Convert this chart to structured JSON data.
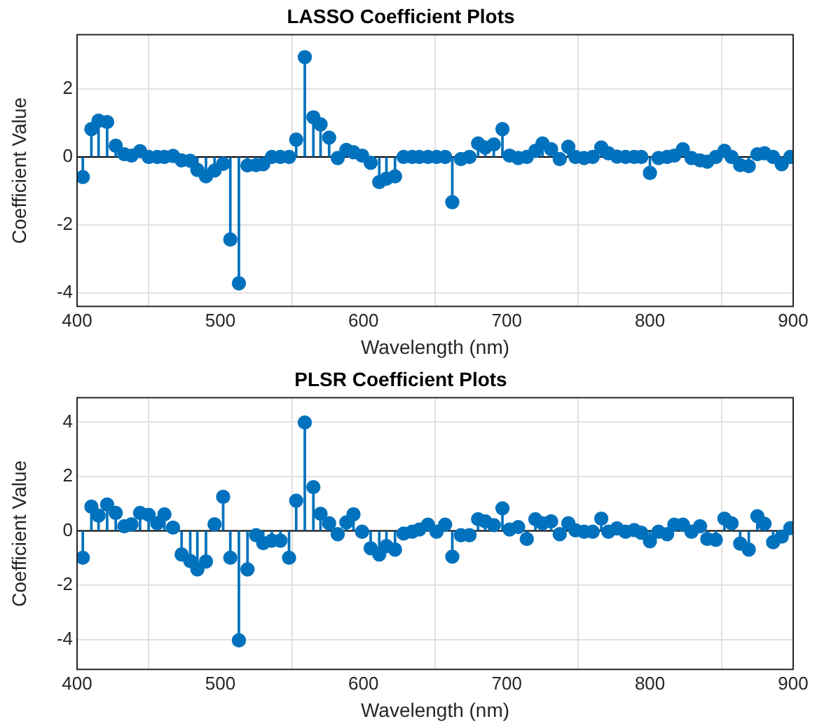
{
  "chart_data": [
    {
      "type": "lollipop",
      "title": "LASSO Coefficient Plots",
      "xlabel": "Wavelength (nm)",
      "ylabel": "Coefficient Value",
      "color": "#0072bd",
      "marker": "circle",
      "grid": true,
      "xlim": [
        400,
        900
      ],
      "xticks": [
        400,
        500,
        600,
        700,
        800,
        900
      ],
      "ylim": [
        -4.4,
        3.6
      ],
      "yticks": [
        -4,
        -2,
        0,
        2
      ],
      "x": [
        404,
        410,
        415,
        421,
        427,
        433,
        438,
        444,
        450,
        456,
        461,
        467,
        473,
        479,
        484,
        490,
        496,
        502,
        507,
        513,
        519,
        525,
        530,
        536,
        542,
        548,
        553,
        559,
        565,
        570,
        576,
        582,
        588,
        593,
        599,
        605,
        611,
        616,
        622,
        628,
        634,
        639,
        645,
        651,
        657,
        662,
        668,
        674,
        680,
        685,
        691,
        697,
        702,
        708,
        714,
        720,
        725,
        731,
        737,
        743,
        748,
        754,
        760,
        766,
        771,
        777,
        783,
        789,
        794,
        800,
        806,
        812,
        817,
        823,
        829,
        835,
        840,
        846,
        852,
        857,
        863,
        869,
        875,
        880,
        886,
        892,
        898
      ],
      "values": [
        -0.59,
        0.82,
        1.07,
        1.03,
        0.33,
        0.08,
        0.04,
        0.17,
        0,
        0,
        0,
        0.03,
        -0.1,
        -0.11,
        -0.38,
        -0.57,
        -0.4,
        -0.2,
        -2.43,
        -3.72,
        -0.25,
        -0.24,
        -0.21,
        0,
        0,
        0,
        0.51,
        2.94,
        1.17,
        0.96,
        0.57,
        -0.03,
        0.21,
        0.14,
        0.04,
        -0.17,
        -0.74,
        -0.64,
        -0.57,
        0,
        0,
        0,
        0,
        0,
        0,
        -1.33,
        -0.06,
        0,
        0.4,
        0.28,
        0.37,
        0.82,
        0.04,
        -0.03,
        0,
        0.18,
        0.4,
        0.23,
        -0.06,
        0.3,
        0,
        -0.03,
        0,
        0.28,
        0.11,
        0.01,
        0,
        0,
        0,
        -0.47,
        -0.03,
        0,
        0.04,
        0.23,
        -0.03,
        -0.1,
        -0.14,
        0,
        0.18,
        0,
        -0.24,
        -0.27,
        0.08,
        0.11,
        0,
        -0.21,
        0
      ]
    },
    {
      "type": "lollipop",
      "title": "PLSR Coefficient Plots",
      "xlabel": "Wavelength (nm)",
      "ylabel": "Coefficient Value",
      "color": "#0072bd",
      "marker": "circle",
      "grid": true,
      "xlim": [
        400,
        900
      ],
      "xticks": [
        400,
        500,
        600,
        700,
        800,
        900
      ],
      "ylim": [
        -5.1,
        4.9
      ],
      "yticks": [
        -4,
        -2,
        0,
        2,
        4
      ],
      "x": [
        404,
        410,
        415,
        421,
        427,
        433,
        438,
        444,
        450,
        456,
        461,
        467,
        473,
        479,
        484,
        490,
        496,
        502,
        507,
        513,
        519,
        525,
        530,
        536,
        542,
        548,
        553,
        559,
        565,
        570,
        576,
        582,
        588,
        593,
        599,
        605,
        611,
        616,
        622,
        628,
        634,
        639,
        645,
        651,
        657,
        662,
        668,
        674,
        680,
        685,
        691,
        697,
        702,
        708,
        714,
        720,
        725,
        731,
        737,
        743,
        748,
        754,
        760,
        766,
        771,
        777,
        783,
        789,
        794,
        800,
        806,
        812,
        817,
        823,
        829,
        835,
        840,
        846,
        852,
        857,
        863,
        869,
        875,
        880,
        886,
        892,
        898
      ],
      "values": [
        -0.99,
        0.89,
        0.56,
        0.97,
        0.66,
        0.17,
        0.24,
        0.66,
        0.59,
        0.28,
        0.61,
        0.12,
        -0.87,
        -1.11,
        -1.42,
        -1.13,
        0.24,
        1.25,
        -0.99,
        -4.03,
        -1.42,
        -0.16,
        -0.45,
        -0.36,
        -0.36,
        -0.99,
        1.11,
        3.99,
        1.61,
        0.63,
        0.28,
        -0.12,
        0.31,
        0.61,
        -0.03,
        -0.64,
        -0.87,
        -0.56,
        -0.69,
        -0.1,
        -0.03,
        0.05,
        0.23,
        -0.03,
        0.23,
        -0.95,
        -0.16,
        -0.16,
        0.43,
        0.35,
        0.21,
        0.83,
        0.05,
        0.14,
        -0.3,
        0.43,
        0.28,
        0.35,
        -0.12,
        0.28,
        0.02,
        -0.03,
        -0.03,
        0.45,
        -0.03,
        0.09,
        -0.03,
        0.03,
        -0.07,
        -0.38,
        -0.03,
        -0.12,
        0.23,
        0.23,
        -0.03,
        0.17,
        -0.3,
        -0.33,
        0.45,
        0.28,
        -0.47,
        -0.69,
        0.54,
        0.26,
        -0.42,
        -0.21,
        0.1
      ]
    }
  ]
}
